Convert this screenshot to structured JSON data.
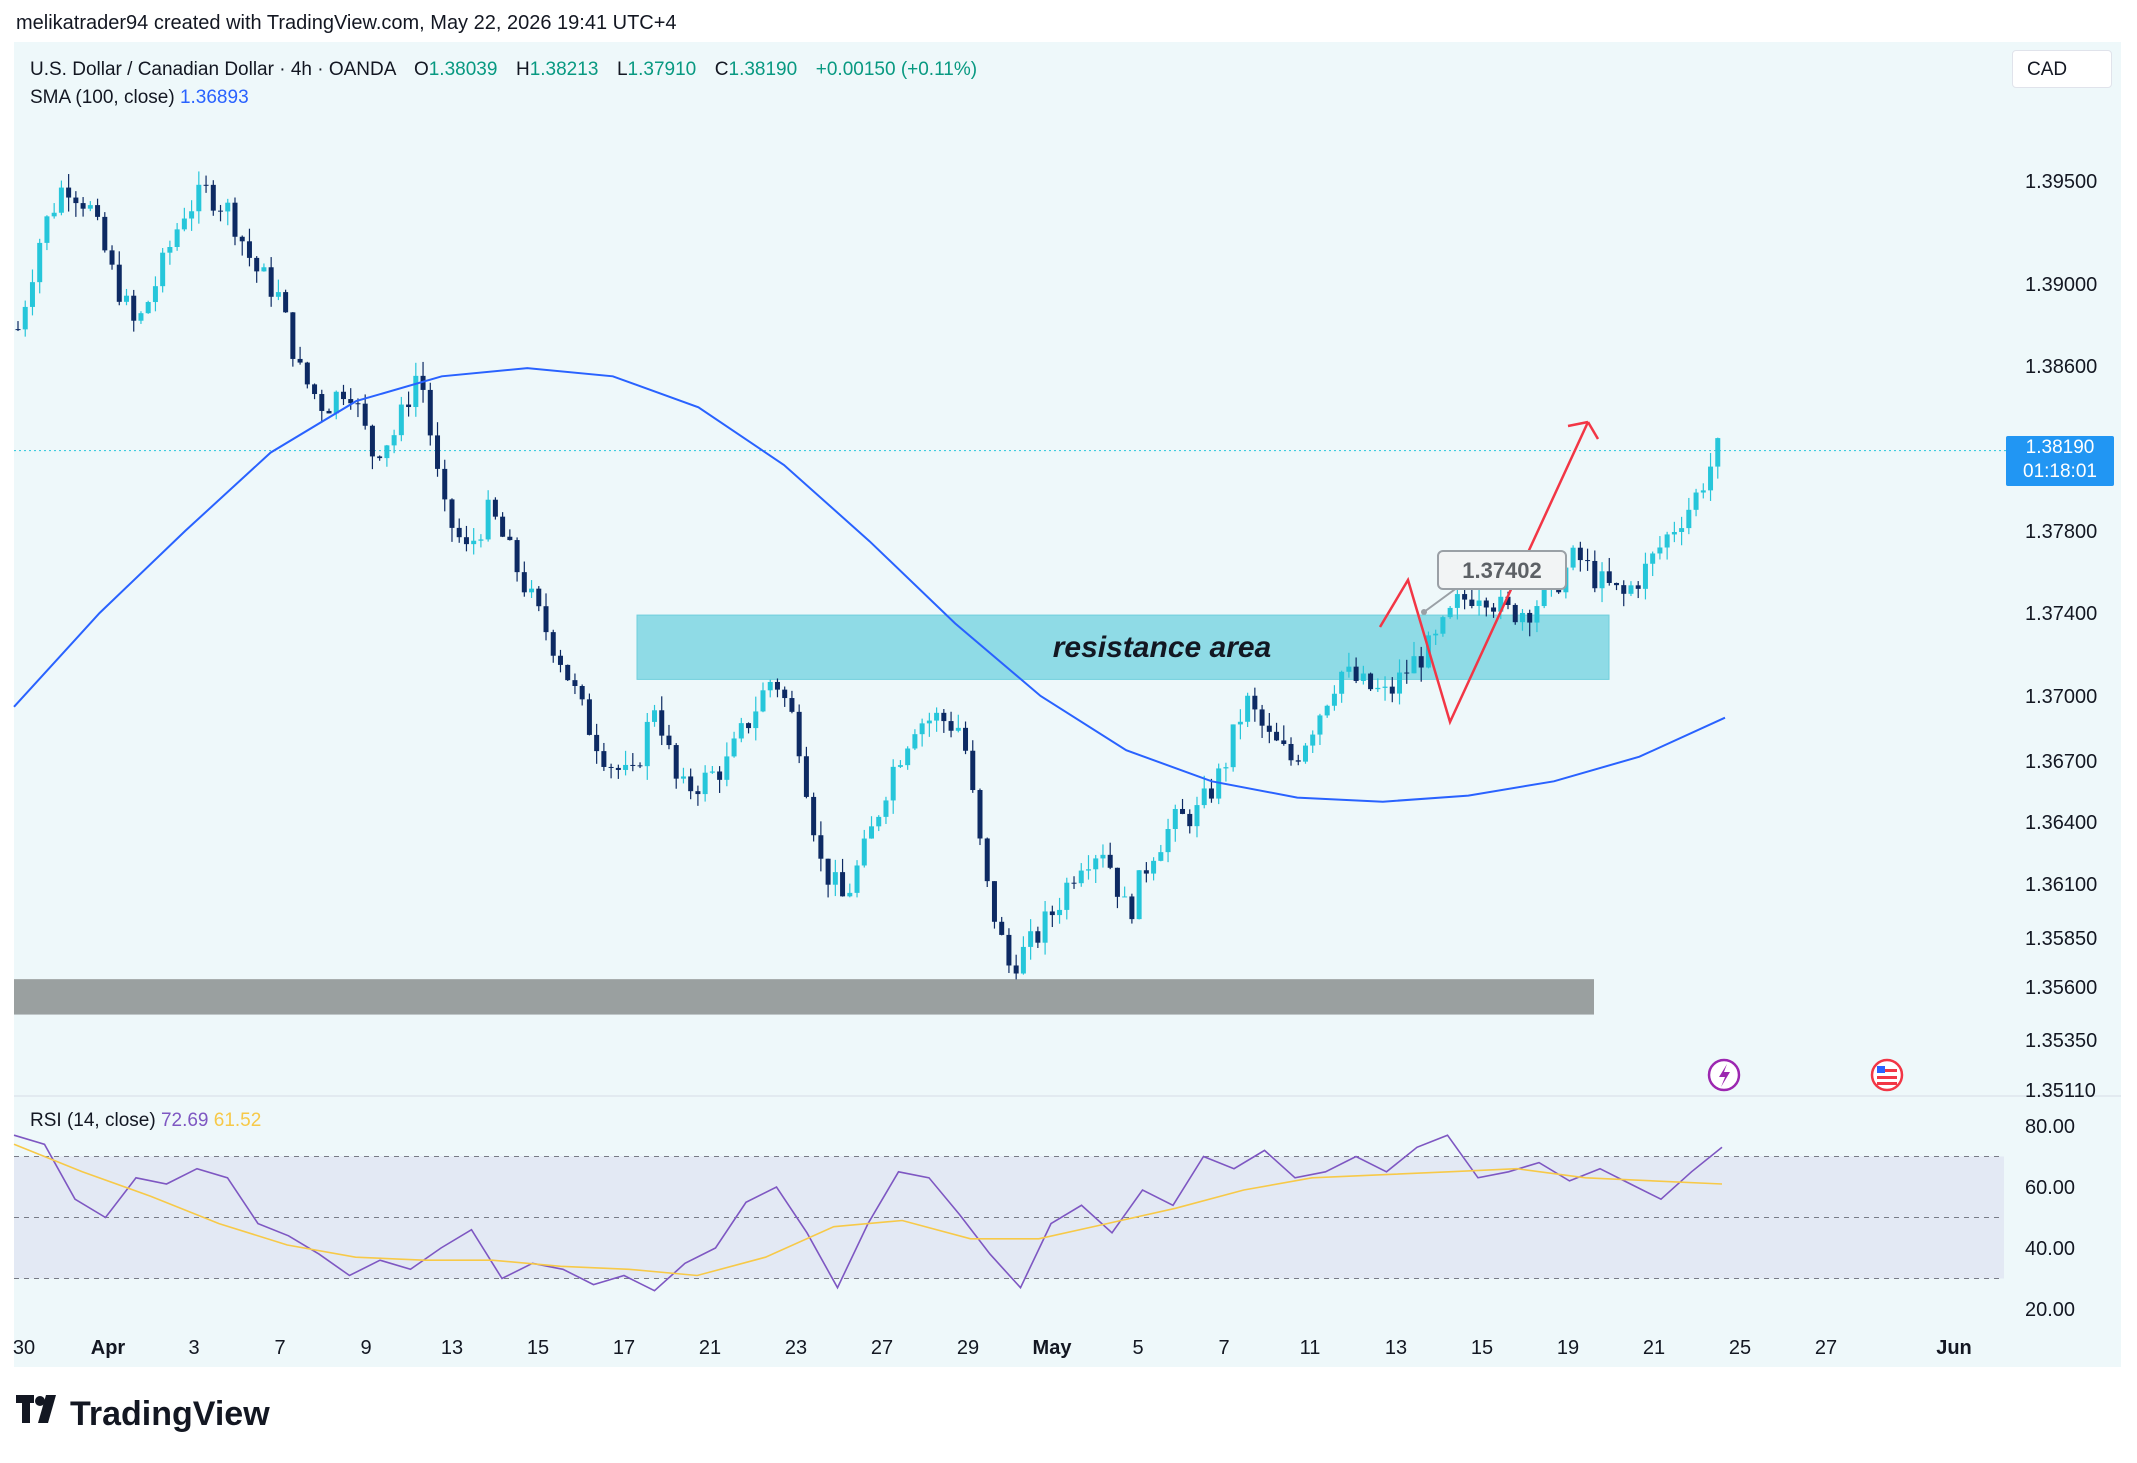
{
  "credit": "melikatrader94 created with TradingView.com, May 22, 2026 19:41 UTC+4",
  "legend": {
    "symbol": "U.S. Dollar / Canadian Dollar · 4h · OANDA",
    "o_label": "O",
    "o": "1.38039",
    "h_label": "H",
    "h": "1.38213",
    "l_label": "L",
    "l": "1.37910",
    "c_label": "C",
    "c": "1.38190",
    "change": "+0.00150 (+0.11%)",
    "sma_label": "SMA (100, close)",
    "sma_value": "1.36893"
  },
  "rsi_legend": {
    "label": "RSI (14, close)",
    "value1": "72.69",
    "value2": "61.52"
  },
  "currency_button": "CAD",
  "price_tag": {
    "price": "1.38190",
    "countdown": "01:18:01"
  },
  "brand": "TradingView",
  "chart_data": {
    "type": "candlestick",
    "y_ticks": [
      "1.39500",
      "1.39000",
      "1.38600",
      "1.37800",
      "1.37400",
      "1.37000",
      "1.36700",
      "1.36400",
      "1.36100",
      "1.35850",
      "1.35600",
      "1.35350",
      "1.35110"
    ],
    "x_ticks": [
      "30",
      "Apr",
      "3",
      "7",
      "9",
      "13",
      "15",
      "17",
      "21",
      "23",
      "27",
      "29",
      "May",
      "5",
      "7",
      "11",
      "13",
      "15",
      "19",
      "21",
      "25",
      "27",
      "Jun"
    ],
    "rsi_ticks": [
      "80.00",
      "60.00",
      "40.00",
      "20.00"
    ],
    "annotations": {
      "resistance": {
        "text": "resistance area",
        "price_low": 1.3708,
        "price_high": 1.3739
      },
      "support_zone": {
        "price_low": 1.3547,
        "price_high": 1.3564
      },
      "callout": "1.37402",
      "current_price": 1.3819
    },
    "price_path": [
      1.3878,
      1.3925,
      1.395,
      1.3938,
      1.3905,
      1.3878,
      1.3905,
      1.3935,
      1.3945,
      1.3935,
      1.3908,
      1.3895,
      1.3855,
      1.384,
      1.3852,
      1.3818,
      1.3828,
      1.386,
      1.379,
      1.377,
      1.379,
      1.3765,
      1.374,
      1.3718,
      1.369,
      1.367,
      1.366,
      1.3698,
      1.3655,
      1.366,
      1.3668,
      1.369,
      1.371,
      1.3685,
      1.362,
      1.3602,
      1.363,
      1.3665,
      1.3688,
      1.369,
      1.3685,
      1.361,
      1.357,
      1.3583,
      1.36,
      1.3622,
      1.3628,
      1.3595,
      1.3625,
      1.364,
      1.3645,
      1.3665,
      1.3698,
      1.368,
      1.367,
      1.369,
      1.3712,
      1.3705,
      1.37,
      1.3715,
      1.3725,
      1.3745,
      1.3752,
      1.374,
      1.3742,
      1.3752,
      1.3768,
      1.3755,
      1.3748,
      1.3762,
      1.378,
      1.3795,
      1.3819
    ],
    "sma_path": [
      1.3695,
      1.374,
      1.378,
      1.3818,
      1.3843,
      1.3855,
      1.3859,
      1.3855,
      1.384,
      1.3812,
      1.3775,
      1.3735,
      1.37,
      1.3675,
      1.366,
      1.3652,
      1.365,
      1.3653,
      1.366,
      1.3672,
      1.369
    ],
    "rsi_path": [
      77,
      74,
      56,
      50,
      63,
      61,
      66,
      63,
      48,
      44,
      38,
      31,
      36,
      33,
      40,
      46,
      30,
      35,
      33,
      28,
      31,
      26,
      35,
      40,
      55,
      60,
      45,
      27,
      48,
      65,
      63,
      51,
      38,
      27,
      48,
      54,
      45,
      59,
      54,
      70,
      66,
      72,
      63,
      65,
      70,
      65,
      73,
      77,
      63,
      65,
      68,
      62,
      66,
      61,
      56,
      65,
      73
    ],
    "rsi_ma_path": [
      74,
      65,
      57,
      48,
      41,
      37,
      36,
      36,
      34,
      33,
      31,
      37,
      47,
      49,
      43,
      43,
      48,
      53,
      59,
      63,
      64,
      65,
      66,
      63,
      62,
      61
    ],
    "rsi_bands": {
      "upper": 70,
      "middle": 50,
      "lower": 30
    },
    "colors": {
      "up": "#26c6da",
      "down": "#0d2a63",
      "sma": "#2962ff",
      "rsi": "#7e57c2",
      "rsi_ma": "#f7c948",
      "resistance": "#8fdbe6",
      "support": "#9aa0a0",
      "arrow": "#f23645"
    }
  }
}
